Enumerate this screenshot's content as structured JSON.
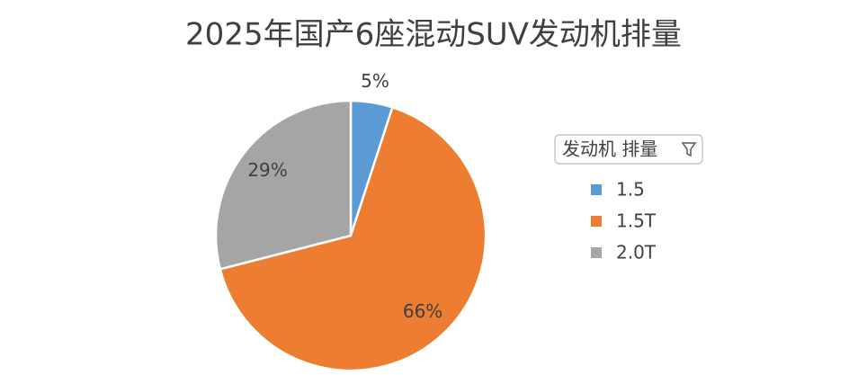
{
  "chart_data": {
    "type": "pie",
    "title": "2025年国产6座混动SUV发动机排量",
    "legend_title": "发动机 排量",
    "categories": [
      "1.5",
      "1.5T",
      "2.0T"
    ],
    "values": [
      5,
      66,
      29
    ],
    "value_labels": [
      "5%",
      "66%",
      "29%"
    ],
    "colors": [
      "#5b9bd5",
      "#ed7d31",
      "#a5a5a5"
    ],
    "legend": "right"
  }
}
